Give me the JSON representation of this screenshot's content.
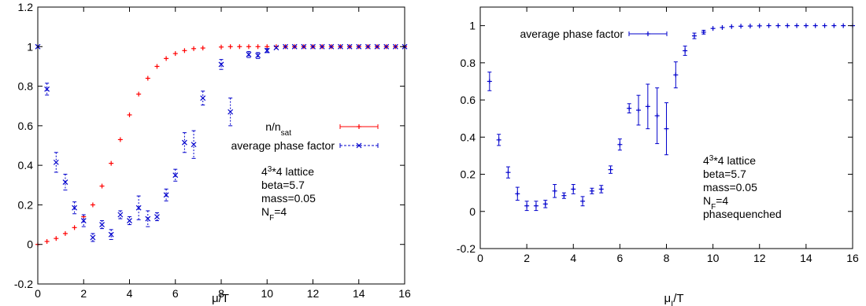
{
  "chart_data": [
    {
      "type": "scatter",
      "title": "",
      "xlabel": "μ/T",
      "ylabel": "",
      "xlim": [
        0,
        16
      ],
      "ylim": [
        -0.2,
        1.2
      ],
      "xticks": [
        "0",
        "2",
        "4",
        "6",
        "8",
        "10",
        "12",
        "14",
        "16"
      ],
      "yticks": [
        "-0.2",
        "0",
        "0.2",
        "0.4",
        "0.6",
        "0.8",
        "1",
        "1.2"
      ],
      "grid": false,
      "legend_position": "center-right",
      "annotation_lines": [
        "4³*4 lattice",
        "beta=5.7",
        "mass=0.05",
        "N_F=4"
      ],
      "series": [
        {
          "name": "n/n_sat",
          "color": "#ff0000",
          "marker": "plus",
          "style": "solid",
          "points": [
            [
              0.0,
              0.0,
              0.005
            ],
            [
              0.4,
              0.015,
              0.005
            ],
            [
              0.8,
              0.03,
              0.005
            ],
            [
              1.2,
              0.055,
              0.005
            ],
            [
              1.6,
              0.085,
              0.005
            ],
            [
              2.0,
              0.14,
              0.005
            ],
            [
              2.4,
              0.2,
              0.005
            ],
            [
              2.8,
              0.295,
              0.005
            ],
            [
              3.2,
              0.41,
              0.005
            ],
            [
              3.6,
              0.53,
              0.005
            ],
            [
              4.0,
              0.655,
              0.005
            ],
            [
              4.4,
              0.76,
              0.005
            ],
            [
              4.8,
              0.84,
              0.005
            ],
            [
              5.2,
              0.9,
              0.005
            ],
            [
              5.6,
              0.94,
              0.005
            ],
            [
              6.0,
              0.965,
              0.005
            ],
            [
              6.4,
              0.98,
              0.005
            ],
            [
              6.8,
              0.99,
              0.005
            ],
            [
              7.2,
              0.993,
              0.005
            ],
            [
              8.0,
              0.998,
              0.005
            ],
            [
              8.4,
              1.0,
              0.005
            ],
            [
              8.8,
              1.0,
              0.005
            ],
            [
              9.2,
              1.0,
              0.005
            ],
            [
              9.6,
              1.0,
              0.005
            ],
            [
              10.0,
              1.0,
              0.005
            ],
            [
              10.4,
              1.0,
              0.005
            ],
            [
              10.8,
              1.0,
              0.005
            ],
            [
              11.2,
              1.0,
              0.005
            ],
            [
              11.6,
              1.0,
              0.005
            ],
            [
              12.0,
              1.0,
              0.005
            ],
            [
              12.4,
              1.0,
              0.005
            ],
            [
              12.8,
              1.0,
              0.005
            ],
            [
              13.2,
              1.0,
              0.005
            ],
            [
              13.6,
              1.0,
              0.005
            ],
            [
              14.0,
              1.0,
              0.005
            ],
            [
              14.4,
              1.0,
              0.005
            ],
            [
              14.8,
              1.0,
              0.005
            ],
            [
              15.2,
              1.0,
              0.005
            ],
            [
              15.6,
              1.0,
              0.005
            ],
            [
              16.0,
              1.0,
              0.005
            ]
          ]
        },
        {
          "name": "average phase factor",
          "color": "#0000cc",
          "marker": "x",
          "style": "dashed",
          "points": [
            [
              0.0,
              1.0,
              0.005
            ],
            [
              0.4,
              0.785,
              0.03
            ],
            [
              0.8,
              0.415,
              0.05
            ],
            [
              1.2,
              0.315,
              0.04
            ],
            [
              1.6,
              0.185,
              0.03
            ],
            [
              2.0,
              0.12,
              0.03
            ],
            [
              2.4,
              0.035,
              0.02
            ],
            [
              2.8,
              0.1,
              0.02
            ],
            [
              3.2,
              0.05,
              0.025
            ],
            [
              3.6,
              0.15,
              0.02
            ],
            [
              4.0,
              0.12,
              0.02
            ],
            [
              4.4,
              0.185,
              0.06
            ],
            [
              4.8,
              0.13,
              0.04
            ],
            [
              5.2,
              0.14,
              0.02
            ],
            [
              5.6,
              0.25,
              0.03
            ],
            [
              6.0,
              0.35,
              0.03
            ],
            [
              6.4,
              0.515,
              0.05
            ],
            [
              6.8,
              0.505,
              0.07
            ],
            [
              7.2,
              0.74,
              0.035
            ],
            [
              8.0,
              0.91,
              0.025
            ],
            [
              8.4,
              0.67,
              0.07
            ],
            [
              9.2,
              0.96,
              0.015
            ],
            [
              9.6,
              0.955,
              0.015
            ],
            [
              10.0,
              0.98,
              0.01
            ],
            [
              10.4,
              0.995,
              0.005
            ],
            [
              10.8,
              1.0,
              0.005
            ],
            [
              11.2,
              1.0,
              0.005
            ],
            [
              11.6,
              1.0,
              0.005
            ],
            [
              12.0,
              1.0,
              0.005
            ],
            [
              12.4,
              1.0,
              0.005
            ],
            [
              12.8,
              1.0,
              0.005
            ],
            [
              13.2,
              1.0,
              0.005
            ],
            [
              13.6,
              1.0,
              0.005
            ],
            [
              14.0,
              1.0,
              0.005
            ],
            [
              14.4,
              1.0,
              0.005
            ],
            [
              14.8,
              1.0,
              0.005
            ],
            [
              15.2,
              1.0,
              0.005
            ],
            [
              15.6,
              1.0,
              0.005
            ],
            [
              16.0,
              1.0,
              0.005
            ]
          ]
        }
      ]
    },
    {
      "type": "scatter",
      "title": "",
      "xlabel": "μ_I/T",
      "ylabel": "",
      "xlim": [
        0,
        16
      ],
      "ylim": [
        -0.2,
        1.1
      ],
      "xticks": [
        "0",
        "2",
        "4",
        "6",
        "8",
        "10",
        "12",
        "14",
        "16"
      ],
      "yticks": [
        "-0.2",
        "0",
        "0.2",
        "0.4",
        "0.6",
        "0.8",
        "1"
      ],
      "grid": false,
      "legend_position": "top-left",
      "annotation_lines": [
        "4³*4 lattice",
        "beta=5.7",
        "mass=0.05",
        "N_F=4",
        "phasequenched"
      ],
      "series": [
        {
          "name": "average phase factor",
          "color": "#0000cc",
          "marker": "plus",
          "style": "solid",
          "points": [
            [
              0.4,
              0.7,
              0.05
            ],
            [
              0.8,
              0.385,
              0.03
            ],
            [
              1.2,
              0.21,
              0.03
            ],
            [
              1.6,
              0.095,
              0.035
            ],
            [
              2.0,
              0.03,
              0.025
            ],
            [
              2.4,
              0.03,
              0.025
            ],
            [
              2.8,
              0.04,
              0.02
            ],
            [
              3.2,
              0.11,
              0.035
            ],
            [
              3.6,
              0.085,
              0.015
            ],
            [
              4.0,
              0.12,
              0.025
            ],
            [
              4.4,
              0.055,
              0.025
            ],
            [
              4.8,
              0.11,
              0.015
            ],
            [
              5.2,
              0.12,
              0.02
            ],
            [
              5.6,
              0.225,
              0.02
            ],
            [
              6.0,
              0.36,
              0.03
            ],
            [
              6.4,
              0.555,
              0.025
            ],
            [
              6.8,
              0.545,
              0.08
            ],
            [
              7.2,
              0.565,
              0.12
            ],
            [
              7.6,
              0.515,
              0.15
            ],
            [
              8.0,
              0.445,
              0.14
            ],
            [
              8.4,
              0.735,
              0.07
            ],
            [
              8.8,
              0.865,
              0.025
            ],
            [
              9.2,
              0.945,
              0.015
            ],
            [
              9.6,
              0.965,
              0.01
            ],
            [
              10.0,
              0.985,
              0.005
            ],
            [
              10.4,
              0.99,
              0.005
            ],
            [
              10.8,
              0.995,
              0.005
            ],
            [
              11.2,
              0.997,
              0.004
            ],
            [
              11.6,
              0.998,
              0.003
            ],
            [
              12.0,
              0.999,
              0.003
            ],
            [
              12.4,
              1.0,
              0.003
            ],
            [
              12.8,
              1.0,
              0.003
            ],
            [
              13.2,
              1.0,
              0.003
            ],
            [
              13.6,
              1.0,
              0.003
            ],
            [
              14.0,
              1.0,
              0.003
            ],
            [
              14.4,
              1.0,
              0.003
            ],
            [
              14.8,
              1.0,
              0.003
            ],
            [
              15.2,
              1.0,
              0.003
            ],
            [
              15.6,
              1.0,
              0.003
            ],
            [
              16.0,
              1.0,
              0.003
            ]
          ]
        }
      ]
    }
  ]
}
